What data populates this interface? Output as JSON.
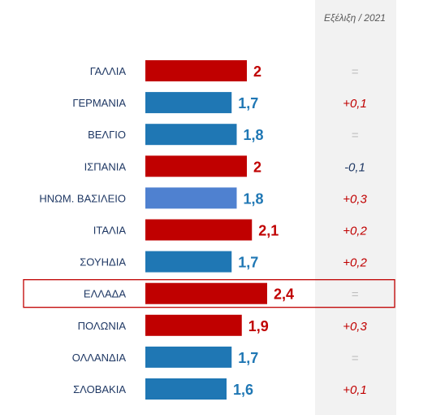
{
  "chart_data": {
    "type": "bar",
    "orientation": "horizontal",
    "change_header": "Εξέλιξη / 2021",
    "categories": [
      "ΓΑΛΛΙΑ",
      "ΓΕΡΜΑΝΙΑ",
      "ΒΕΛΓΙΟ",
      "ΙΣΠΑΝΙΑ",
      "ΗΝΩΜ. ΒΑΣΙΛΕΙΟ",
      "ΙΤΑΛΙΑ",
      "ΣΟΥΗΔΙΑ",
      "ΕΛΛΑΔΑ",
      "ΠΟΛΩΝΙΑ",
      "ΟΛΛΑΝΔΙΑ",
      "ΣΛΟΒΑΚΙΑ"
    ],
    "values": [
      2,
      1.7,
      1.8,
      2,
      1.8,
      2.1,
      1.7,
      2.4,
      1.9,
      1.7,
      1.6
    ],
    "value_labels": [
      "2",
      "1,7",
      "1,8",
      "2",
      "1,8",
      "2,1",
      "1,7",
      "2,4",
      "1,9",
      "1,7",
      "1,6"
    ],
    "changes": [
      "=",
      "+0,1",
      "=",
      "-0,1",
      "+0,3",
      "+0,2",
      "+0,2",
      "=",
      "+0,3",
      "=",
      "+0,1"
    ],
    "highlighted_category": "ΕΛΛΑΔΑ",
    "xlim": [
      0,
      3.9
    ],
    "colors": {
      "red": "#c00000",
      "blue": "#1f77b4",
      "light_blue": "#4f81d0",
      "navy": "#1f3864",
      "category_text": "#1f3864",
      "change_panel": "#f2f2f2",
      "equal_sign": "#bfbfbf",
      "highlight_border": "#c00000",
      "header_text": "#595959"
    },
    "bar_colors": [
      "red",
      "blue",
      "blue",
      "red",
      "light_blue",
      "red",
      "blue",
      "red",
      "red",
      "blue",
      "blue"
    ],
    "change_colors": [
      "equal_sign",
      "red",
      "equal_sign",
      "navy",
      "red",
      "red",
      "red",
      "equal_sign",
      "red",
      "equal_sign",
      "red"
    ]
  }
}
